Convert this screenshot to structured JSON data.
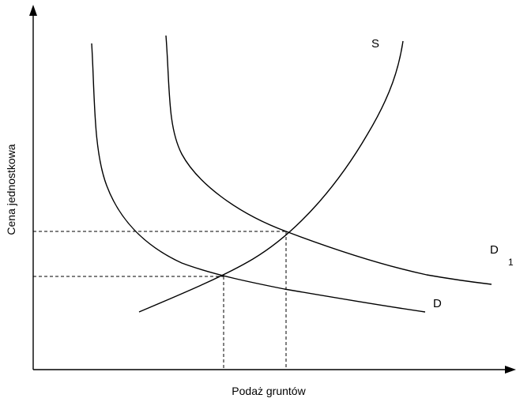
{
  "axes": {
    "y_label": "Cena jednostkowa",
    "x_label": "Podaż gruntów"
  },
  "curves": {
    "supply": "S",
    "demand": "D",
    "demand_shifted": {
      "label": "D",
      "subscript": "1"
    }
  }
}
